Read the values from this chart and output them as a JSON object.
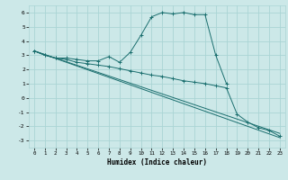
{
  "xlabel": "Humidex (Indice chaleur)",
  "xlim": [
    -0.5,
    23.5
  ],
  "ylim": [
    -3.5,
    6.5
  ],
  "yticks": [
    -3,
    -2,
    -1,
    0,
    1,
    2,
    3,
    4,
    5,
    6
  ],
  "xticks": [
    0,
    1,
    2,
    3,
    4,
    5,
    6,
    7,
    8,
    9,
    10,
    11,
    12,
    13,
    14,
    15,
    16,
    17,
    18,
    19,
    20,
    21,
    22,
    23
  ],
  "bg_color": "#cce8e8",
  "line_color": "#1a6e6e",
  "grid_color": "#aad4d4",
  "series": [
    {
      "x": [
        0,
        1,
        2,
        3,
        4,
        5,
        6,
        7,
        8,
        9,
        10,
        11,
        12,
        13,
        14,
        15,
        16,
        17,
        18
      ],
      "y": [
        3.3,
        3.0,
        2.8,
        2.8,
        2.7,
        2.6,
        2.6,
        2.9,
        2.5,
        3.2,
        4.4,
        5.7,
        6.0,
        5.9,
        6.0,
        5.85,
        5.85,
        3.0,
        1.0
      ],
      "marker": "+"
    },
    {
      "x": [
        0,
        1,
        2,
        3,
        4,
        5,
        6,
        7,
        8,
        9,
        10,
        11,
        12,
        13,
        14,
        15,
        16,
        17,
        18,
        19,
        20,
        21,
        22,
        23
      ],
      "y": [
        3.3,
        3.0,
        2.8,
        2.7,
        2.5,
        2.4,
        2.3,
        2.2,
        2.05,
        1.9,
        1.75,
        1.6,
        1.5,
        1.35,
        1.2,
        1.1,
        1.0,
        0.85,
        0.7,
        -1.15,
        -1.7,
        -2.1,
        -2.3,
        -2.7
      ],
      "marker": "+"
    },
    {
      "x": [
        0,
        23
      ],
      "y": [
        3.3,
        -2.8
      ],
      "marker": null
    },
    {
      "x": [
        0,
        23
      ],
      "y": [
        3.3,
        -2.5
      ],
      "marker": null
    }
  ]
}
